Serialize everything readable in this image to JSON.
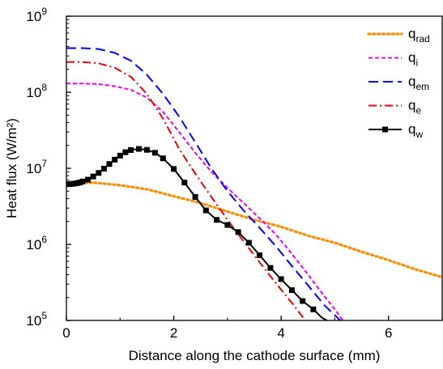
{
  "chart_data": {
    "type": "line",
    "xlabel": "Distance along the cathode surface (mm)",
    "ylabel": "Heat flux (W/m²)",
    "xlim": [
      0,
      7
    ],
    "ylim": [
      100000,
      1000000000
    ],
    "yscale": "log",
    "x_ticks": [
      "0",
      "2",
      "4",
      "6"
    ],
    "y_ticks": [
      {
        "base": "10",
        "exp": "5"
      },
      {
        "base": "10",
        "exp": "6"
      },
      {
        "base": "10",
        "exp": "7"
      },
      {
        "base": "10",
        "exp": "8"
      },
      {
        "base": "10",
        "exp": "9"
      }
    ],
    "grid": false,
    "legend_position": "top-right",
    "series": [
      {
        "name": "q",
        "sub": "rad",
        "color": "#ff8c00",
        "dash": "dotted",
        "marker": "none",
        "points": [
          [
            0,
            6300000
          ],
          [
            0.5,
            6500000
          ],
          [
            1.0,
            6000000
          ],
          [
            1.5,
            5300000
          ],
          [
            2.0,
            4300000
          ],
          [
            2.5,
            3500000
          ],
          [
            3.0,
            2700000
          ],
          [
            3.5,
            2100000
          ],
          [
            4.0,
            1700000
          ],
          [
            4.5,
            1300000
          ],
          [
            5.0,
            1050000
          ],
          [
            5.5,
            800000
          ],
          [
            6.0,
            620000
          ],
          [
            6.5,
            470000
          ],
          [
            7.0,
            370000
          ]
        ]
      },
      {
        "name": "q",
        "sub": "i",
        "color": "#ee00ee",
        "dash": "short-dash",
        "marker": "none",
        "points": [
          [
            0,
            130000000
          ],
          [
            0.3,
            130000000
          ],
          [
            0.6,
            128000000
          ],
          [
            0.9,
            120000000
          ],
          [
            1.2,
            108000000
          ],
          [
            1.5,
            85000000
          ],
          [
            1.8,
            55000000
          ],
          [
            2.1,
            30000000
          ],
          [
            2.4,
            16000000
          ],
          [
            2.7,
            9000000
          ],
          [
            3.0,
            5500000
          ],
          [
            3.3,
            3500000
          ],
          [
            3.6,
            2200000
          ],
          [
            3.9,
            1350000
          ],
          [
            4.2,
            750000
          ],
          [
            4.5,
            400000
          ],
          [
            4.8,
            210000
          ],
          [
            5.0,
            140000
          ],
          [
            5.15,
            100000
          ]
        ]
      },
      {
        "name": "q",
        "sub": "em",
        "color": "#0000ff",
        "dash": "long-dash",
        "marker": "none",
        "points": [
          [
            0,
            380000000
          ],
          [
            0.3,
            380000000
          ],
          [
            0.6,
            370000000
          ],
          [
            0.9,
            330000000
          ],
          [
            1.2,
            260000000
          ],
          [
            1.5,
            170000000
          ],
          [
            1.8,
            95000000
          ],
          [
            2.1,
            48000000
          ],
          [
            2.4,
            22000000
          ],
          [
            2.7,
            10000000
          ],
          [
            3.0,
            5000000
          ],
          [
            3.3,
            2800000
          ],
          [
            3.6,
            1650000
          ],
          [
            3.9,
            950000
          ],
          [
            4.2,
            520000
          ],
          [
            4.5,
            290000
          ],
          [
            4.8,
            160000
          ],
          [
            5.1,
            100000
          ]
        ]
      },
      {
        "name": "q",
        "sub": "e",
        "color": "#ee0000",
        "dash": "dash-dot",
        "marker": "none",
        "points": [
          [
            0,
            250000000
          ],
          [
            0.3,
            250000000
          ],
          [
            0.6,
            240000000
          ],
          [
            0.9,
            210000000
          ],
          [
            1.2,
            160000000
          ],
          [
            1.5,
            95000000
          ],
          [
            1.8,
            45000000
          ],
          [
            2.1,
            18000000
          ],
          [
            2.4,
            8500000
          ],
          [
            2.7,
            4200000
          ],
          [
            3.0,
            2100000
          ],
          [
            3.3,
            1100000
          ],
          [
            3.6,
            580000
          ],
          [
            3.9,
            310000
          ],
          [
            4.2,
            170000
          ],
          [
            4.45,
            100000
          ]
        ]
      },
      {
        "name": "q",
        "sub": "w",
        "color": "#000000",
        "dash": "solid",
        "marker": "square",
        "points": [
          [
            0,
            6200000
          ],
          [
            0.05,
            6200000
          ],
          [
            0.1,
            6250000
          ],
          [
            0.15,
            6300000
          ],
          [
            0.2,
            6400000
          ],
          [
            0.25,
            6500000
          ],
          [
            0.3,
            6700000
          ],
          [
            0.4,
            7100000
          ],
          [
            0.5,
            7800000
          ],
          [
            0.6,
            8700000
          ],
          [
            0.7,
            9900000
          ],
          [
            0.8,
            11400000
          ],
          [
            0.9,
            13000000
          ],
          [
            1.0,
            14700000
          ],
          [
            1.1,
            16300000
          ],
          [
            1.2,
            17400000
          ],
          [
            1.35,
            18000000
          ],
          [
            1.5,
            17500000
          ],
          [
            1.65,
            16000000
          ],
          [
            1.8,
            13500000
          ],
          [
            2.0,
            9800000
          ],
          [
            2.2,
            6500000
          ],
          [
            2.4,
            4200000
          ],
          [
            2.6,
            2800000
          ],
          [
            2.8,
            2100000
          ],
          [
            3.0,
            1800000
          ],
          [
            3.2,
            1450000
          ],
          [
            3.4,
            1050000
          ],
          [
            3.6,
            720000
          ],
          [
            3.8,
            490000
          ],
          [
            4.0,
            350000
          ],
          [
            4.2,
            250000
          ],
          [
            4.4,
            180000
          ],
          [
            4.6,
            140000
          ],
          [
            4.75,
            110000
          ],
          [
            4.85,
            100000
          ]
        ],
        "marker_x": [
          0,
          0.05,
          0.1,
          0.15,
          0.2,
          0.25,
          0.3,
          0.4,
          0.5,
          0.6,
          0.7,
          0.8,
          0.9,
          1.0,
          1.1,
          1.2,
          1.35,
          1.5,
          1.65,
          1.8,
          2.0,
          2.2,
          2.4,
          2.6,
          2.8,
          3.0,
          3.2,
          3.4,
          3.6,
          3.8,
          4.0,
          4.2,
          4.4,
          4.6
        ]
      }
    ]
  }
}
